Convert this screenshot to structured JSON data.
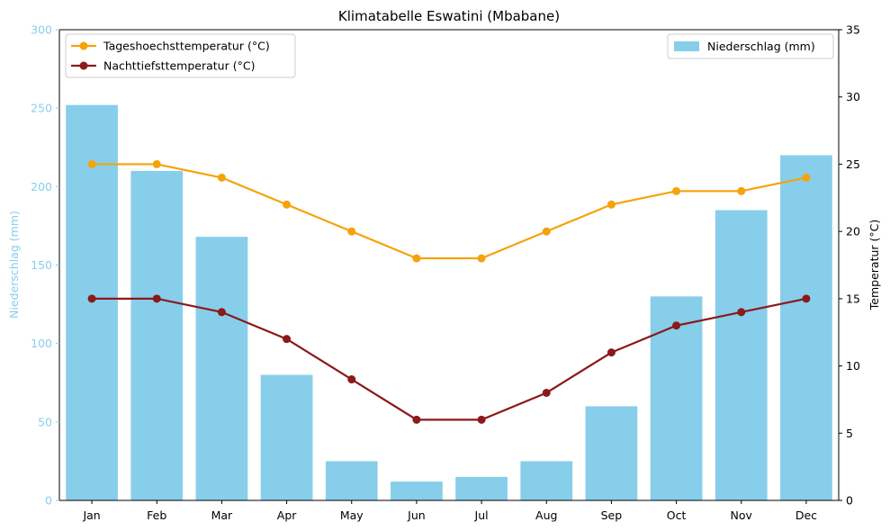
{
  "chart_data": {
    "type": "bar",
    "title": "Klimatabelle Eswatini (Mbabane)",
    "categories": [
      "Jan",
      "Feb",
      "Mar",
      "Apr",
      "May",
      "Jun",
      "Jul",
      "Aug",
      "Sep",
      "Oct",
      "Nov",
      "Dec"
    ],
    "bar_series": {
      "name": "Niederschlag (mm)",
      "values": [
        252,
        210,
        168,
        80,
        25,
        12,
        15,
        25,
        60,
        130,
        185,
        220
      ],
      "color": "#87CEEB"
    },
    "line_series": [
      {
        "name": "Tageshoechsttemperatur (°C)",
        "values": [
          25,
          25,
          24,
          22,
          20,
          18,
          18,
          20,
          22,
          23,
          23,
          24
        ],
        "color": "#F5A30A"
      },
      {
        "name": "Nachttiefsttemperatur (°C)",
        "values": [
          15,
          15,
          14,
          12,
          9,
          6,
          6,
          8,
          11,
          13,
          14,
          15
        ],
        "color": "#8B1A1A"
      }
    ],
    "ylabel_left": "Niederschlag (mm)",
    "ylabel_right": "Temperatur (°C)",
    "ylim_left": [
      0,
      300
    ],
    "ylim_right": [
      0,
      35
    ],
    "yticks_left": [
      0,
      50,
      100,
      150,
      200,
      250,
      300
    ],
    "yticks_right": [
      0,
      5,
      10,
      15,
      20,
      25,
      30,
      35
    ],
    "grid": false,
    "legend_lines_placement": "top-left",
    "legend_bars_placement": "top-right"
  }
}
